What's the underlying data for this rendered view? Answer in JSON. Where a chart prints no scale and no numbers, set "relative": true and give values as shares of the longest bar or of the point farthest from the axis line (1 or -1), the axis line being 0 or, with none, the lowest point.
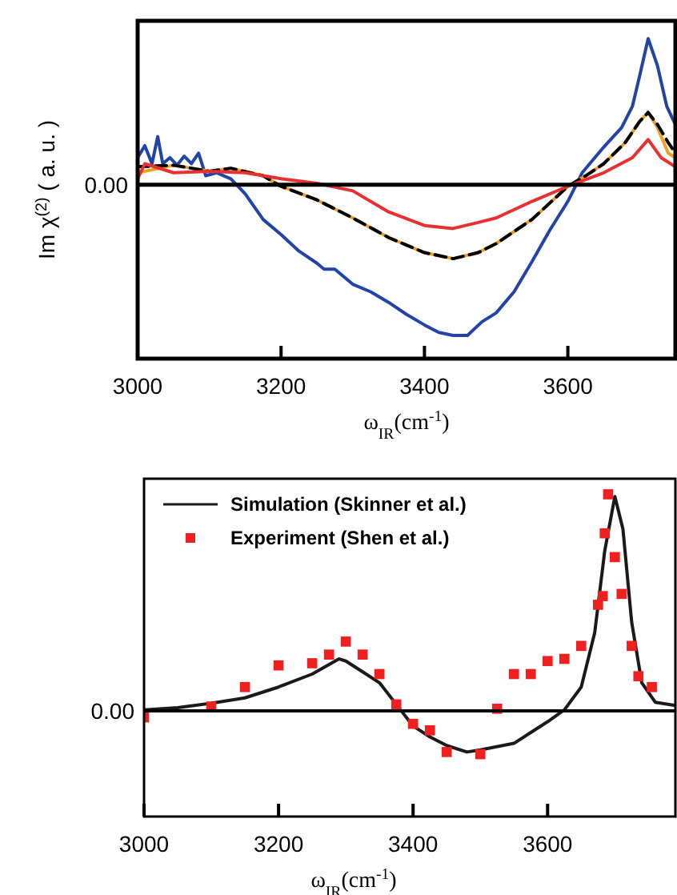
{
  "chart_data": [
    {
      "type": "line",
      "relative": true,
      "ylabel": "Im χ$^{(2)}$ ( a. u. )",
      "xlabel": "ω$_{IR}$(cm$^{-1}$)",
      "xlim": [
        3000,
        3750
      ],
      "xticks": [
        3000,
        3200,
        3400,
        3600
      ],
      "ref_lines": [
        {
          "axis": "y",
          "value": 0,
          "label": "0.00",
          "color": "#000000"
        }
      ],
      "legend": false,
      "series": [
        {
          "color": "#2244a8",
          "x": [
            3000,
            3010,
            3020,
            3028,
            3035,
            3045,
            3055,
            3065,
            3075,
            3085,
            3095,
            3110,
            3130,
            3150,
            3175,
            3200,
            3225,
            3250,
            3260,
            3275,
            3300,
            3325,
            3350,
            3375,
            3400,
            3420,
            3440,
            3460,
            3480,
            3500,
            3525,
            3550,
            3575,
            3600,
            3620,
            3650,
            3675,
            3690,
            3700,
            3712,
            3725,
            3738,
            3750
          ],
          "values": [
            0.18,
            0.26,
            0.14,
            0.32,
            0.14,
            0.18,
            0.13,
            0.19,
            0.14,
            0.21,
            0.06,
            0.08,
            0.04,
            -0.06,
            -0.23,
            -0.33,
            -0.44,
            -0.52,
            -0.56,
            -0.56,
            -0.66,
            -0.71,
            -0.78,
            -0.86,
            -0.93,
            -0.98,
            -1,
            -1,
            -0.91,
            -0.85,
            -0.71,
            -0.51,
            -0.3,
            -0.11,
            0.08,
            0.25,
            0.38,
            0.52,
            0.72,
            0.97,
            0.79,
            0.52,
            0.4
          ]
        },
        {
          "color": "#f0a020",
          "x": [
            3000,
            3050,
            3100,
            3130,
            3175,
            3200,
            3250,
            3300,
            3350,
            3400,
            3440,
            3475,
            3500,
            3550,
            3600,
            3625,
            3650,
            3680,
            3700,
            3712,
            3725,
            3740,
            3750
          ],
          "values": [
            0.08,
            0.13,
            0.09,
            0.11,
            0.06,
            -0.01,
            -0.1,
            -0.22,
            -0.35,
            -0.45,
            -0.49,
            -0.45,
            -0.39,
            -0.23,
            -0.01,
            0.06,
            0.14,
            0.28,
            0.42,
            0.48,
            0.38,
            0.21,
            0.18
          ]
        },
        {
          "color": "#000000",
          "line_style": "dashed",
          "x": [
            3000,
            3050,
            3100,
            3130,
            3175,
            3200,
            3250,
            3300,
            3350,
            3400,
            3440,
            3475,
            3500,
            3550,
            3600,
            3625,
            3650,
            3680,
            3700,
            3712,
            3725,
            3740,
            3750
          ],
          "values": [
            0.12,
            0.13,
            0.09,
            0.11,
            0.06,
            -0.01,
            -0.1,
            -0.22,
            -0.35,
            -0.45,
            -0.49,
            -0.45,
            -0.39,
            -0.23,
            -0.01,
            0.06,
            0.14,
            0.28,
            0.42,
            0.48,
            0.4,
            0.28,
            0.21
          ]
        },
        {
          "color": "#e83030",
          "x": [
            3000,
            3010,
            3050,
            3100,
            3150,
            3200,
            3250,
            3300,
            3350,
            3400,
            3440,
            3475,
            3500,
            3550,
            3600,
            3650,
            3690,
            3712,
            3730,
            3750
          ],
          "values": [
            0.04,
            0.14,
            0.08,
            0.09,
            0.08,
            0.04,
            0.01,
            -0.04,
            -0.18,
            -0.27,
            -0.29,
            -0.25,
            -0.22,
            -0.11,
            -0.01,
            0.08,
            0.18,
            0.3,
            0.18,
            0.12
          ]
        }
      ]
    },
    {
      "type": "line",
      "relative": true,
      "xlabel": "ω$_{IR}$(cm$^{-1}$)",
      "xlim": [
        3000,
        3790
      ],
      "xticks": [
        3000,
        3200,
        3400,
        3600
      ],
      "ref_lines": [
        {
          "axis": "y",
          "value": 0,
          "label": "0.00",
          "color": "#000000"
        }
      ],
      "legend": "top left",
      "series": [
        {
          "name": "Simulation (Skinner et al.)",
          "type": "line",
          "color": "#1a1a1a",
          "x": [
            3000,
            3050,
            3100,
            3150,
            3200,
            3250,
            3290,
            3300,
            3325,
            3350,
            3375,
            3400,
            3425,
            3450,
            3480,
            3500,
            3550,
            3575,
            3600,
            3625,
            3650,
            3670,
            3685,
            3700,
            3712,
            3725,
            3740,
            3760,
            3790
          ],
          "values": [
            0.005,
            0.015,
            0.035,
            0.06,
            0.11,
            0.17,
            0.24,
            0.23,
            0.18,
            0.13,
            0.03,
            -0.07,
            -0.12,
            -0.16,
            -0.19,
            -0.18,
            -0.15,
            -0.1,
            -0.05,
            0.005,
            0.11,
            0.36,
            0.74,
            0.99,
            0.84,
            0.41,
            0.13,
            0.04,
            0.025
          ]
        },
        {
          "name": "Experiment (Shen et al.)",
          "type": "scatter",
          "marker": "square",
          "color": "#f02020",
          "x": [
            3000,
            3100,
            3150,
            3200,
            3250,
            3275,
            3300,
            3325,
            3350,
            3375,
            3400,
            3425,
            3450,
            3500,
            3525,
            3550,
            3575,
            3600,
            3625,
            3650,
            3675,
            3682,
            3685,
            3690,
            3700,
            3710,
            3725,
            3735,
            3755
          ],
          "values": [
            -0.03,
            0.02,
            0.11,
            0.21,
            0.22,
            0.26,
            0.32,
            0.26,
            0.17,
            0.03,
            -0.06,
            -0.09,
            -0.19,
            -0.2,
            0.01,
            0.17,
            0.17,
            0.23,
            0.24,
            0.3,
            0.49,
            0.53,
            0.82,
            1,
            0.71,
            0.54,
            0.3,
            0.16,
            0.11
          ]
        }
      ]
    }
  ]
}
